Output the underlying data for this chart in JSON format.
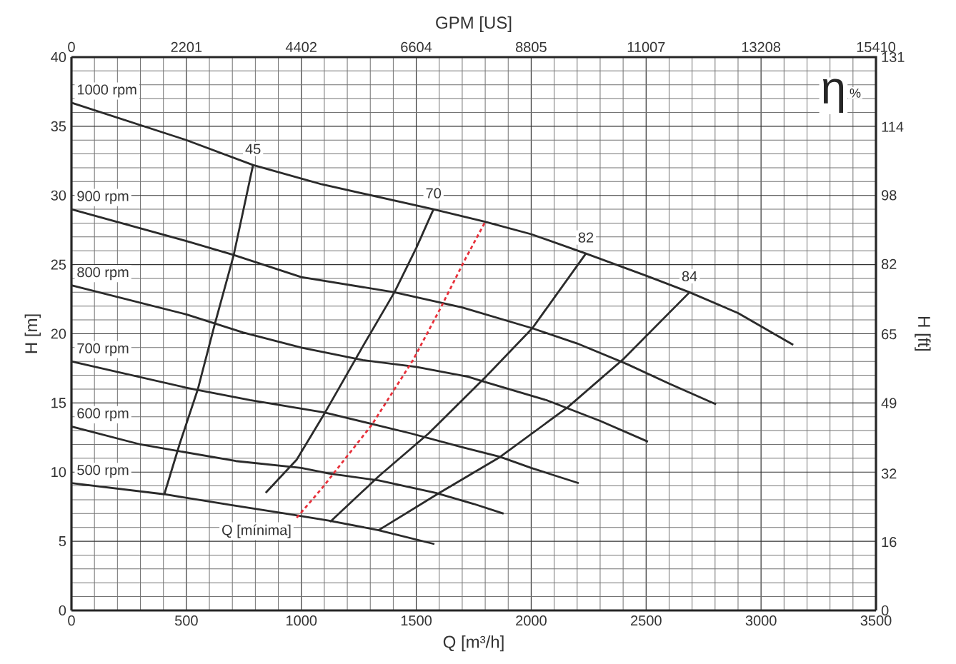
{
  "chart_data": {
    "type": "line",
    "xlabel": "Q [m³/h]",
    "ylabel": "H [m]",
    "x2label": "GPM [US]",
    "y2label": "H [ft]",
    "xlim": [
      0,
      3500
    ],
    "ylim": [
      0,
      40
    ],
    "xticks": [
      0,
      500,
      1000,
      1500,
      2000,
      2500,
      3000,
      3500
    ],
    "yticks": [
      0,
      5,
      10,
      15,
      20,
      25,
      30,
      35,
      40
    ],
    "x2lim": [
      0,
      15410
    ],
    "x2ticks": [
      0,
      2201,
      4402,
      6604,
      8805,
      11007,
      13208,
      15410
    ],
    "y2lim": [
      0,
      131
    ],
    "y2ticks": [
      0,
      {
        "value": 16.2,
        "label": "16"
      },
      {
        "value": 32.4,
        "label": "32"
      },
      {
        "value": 49.1,
        "label": "49"
      },
      {
        "value": 65.4,
        "label": "65"
      },
      {
        "value": 82.0,
        "label": "82"
      },
      {
        "value": 98.3,
        "label": "98"
      },
      {
        "value": 114.5,
        "label": "114"
      },
      131
    ],
    "grid": true,
    "marker": "none",
    "annotations": [
      "η",
      "%"
    ],
    "series": [
      {
        "name": "1000 rpm",
        "color": "#2b2b2b",
        "x": [
          0,
          500,
          790,
          1090,
          1575,
          1800,
          2000,
          2238,
          2500,
          2689,
          2900,
          3140
        ],
        "values": [
          36.7,
          34.0,
          32.2,
          30.8,
          29.0,
          28.1,
          27.2,
          25.8,
          24.2,
          23.0,
          21.5,
          19.2
        ]
      },
      {
        "name": "900 rpm",
        "color": "#2b2b2b",
        "x": [
          0,
          500,
          706,
          1000,
          1405,
          1700,
          2005,
          2200,
          2418,
          2600,
          2804
        ],
        "values": [
          29.0,
          26.7,
          25.7,
          24.1,
          23.0,
          21.9,
          20.4,
          19.3,
          17.8,
          16.4,
          14.9
        ]
      },
      {
        "name": "800 rpm",
        "color": "#2b2b2b",
        "x": [
          0,
          500,
          746,
          1000,
          1268,
          1500,
          1725,
          1803,
          2067,
          2300,
          2508
        ],
        "values": [
          23.5,
          21.4,
          20.1,
          19.0,
          18.1,
          17.6,
          16.9,
          16.5,
          15.2,
          13.7,
          12.2
        ]
      },
      {
        "name": "700 rpm",
        "color": "#2b2b2b",
        "x": [
          0,
          500,
          777,
          1103,
          1476,
          1700,
          1865,
          2000,
          2207
        ],
        "values": [
          18.0,
          16.1,
          15.2,
          14.3,
          12.8,
          11.8,
          11.1,
          10.3,
          9.2
        ]
      },
      {
        "name": "600 rpm",
        "color": "#2b2b2b",
        "x": [
          0,
          300,
          715,
          1000,
          1119,
          1337,
          1585,
          1750,
          1880
        ],
        "values": [
          13.3,
          12.0,
          10.8,
          10.3,
          9.9,
          9.4,
          8.5,
          7.7,
          7.0
        ]
      },
      {
        "name": "500 rpm",
        "color": "#2b2b2b",
        "x": [
          0,
          404,
          700,
          933,
          1119,
          1336,
          1579
        ],
        "values": [
          9.2,
          8.4,
          7.6,
          7.0,
          6.5,
          5.8,
          4.8
        ]
      },
      {
        "name": "45",
        "color": "#2b2b2b",
        "x": [
          404,
          470,
          550,
          622,
          706,
          790
        ],
        "values": [
          8.4,
          12.0,
          16.0,
          20.6,
          25.7,
          32.2
        ]
      },
      {
        "name": "70",
        "color": "#2b2b2b",
        "x": [
          845,
          980,
          1103,
          1268,
          1405,
          1500,
          1575
        ],
        "values": [
          8.5,
          10.9,
          14.3,
          19.1,
          23.0,
          26.2,
          29.0
        ]
      },
      {
        "name": "82",
        "color": "#2b2b2b",
        "x": [
          1125,
          1337,
          1554,
          1803,
          2005,
          2238
        ],
        "values": [
          6.4,
          9.7,
          12.8,
          16.9,
          20.4,
          25.8
        ]
      },
      {
        "name": "84",
        "color": "#2b2b2b",
        "x": [
          1336,
          1601,
          1865,
          2160,
          2403,
          2689
        ],
        "values": [
          5.8,
          8.5,
          11.1,
          14.7,
          18.2,
          23.0
        ]
      },
      {
        "name": "Q [mínima]",
        "color": "#e8303a",
        "line_style": "dotted",
        "x": [
          980,
          1088,
          1306,
          1486,
          1607,
          1710,
          1797
        ],
        "values": [
          6.7,
          8.8,
          13.4,
          18.1,
          21.9,
          25.3,
          28.0
        ]
      }
    ]
  }
}
